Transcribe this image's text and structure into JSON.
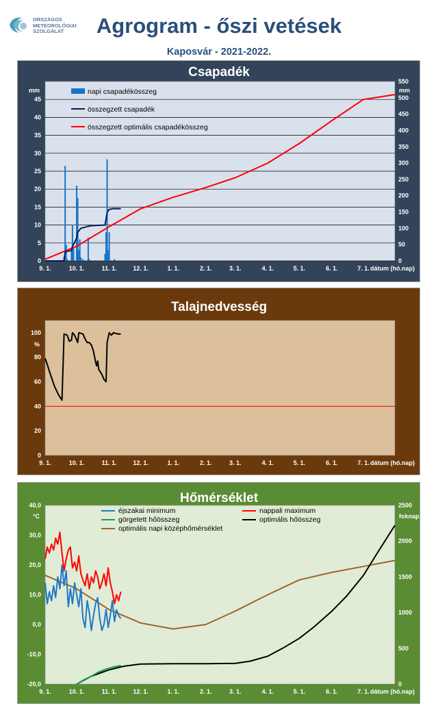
{
  "logo": {
    "line1": "ORSZÁGOS",
    "line2": "METEOROLÓGIAI",
    "line3": "SZOLGÁLAT",
    "icon": "omsz-logo"
  },
  "title": "Agrogram - őszi vetések",
  "subtitle": "Kaposvár - 2021-2022.",
  "colors": {
    "title": "#2a4f7a",
    "panel1": "#33445a",
    "panel2": "#6b3a0c",
    "panel3": "#5a8c34",
    "plot1": "#d9e1ec",
    "plot2": "#dcc09c",
    "plot3": "#e0ecd6"
  },
  "chart_data": [
    {
      "type": "bar+line",
      "title": "Csapadék",
      "x_ticks": [
        "9. 1.",
        "10. 1.",
        "11. 1.",
        "12. 1.",
        "1. 1.",
        "2. 1.",
        "3. 1.",
        "4. 1.",
        "5. 1.",
        "6. 1.",
        "7. 1."
      ],
      "x_label": "dátum (hó.nap)",
      "x_range": [
        "2021-09-01",
        "2022-07-31"
      ],
      "y_left": {
        "unit": "mm",
        "range": [
          0,
          50
        ],
        "ticks": [
          0,
          5,
          10,
          15,
          20,
          25,
          30,
          35,
          40,
          45
        ]
      },
      "y_right": {
        "unit": "mm",
        "range": [
          0,
          550
        ],
        "ticks": [
          0,
          50,
          100,
          150,
          200,
          250,
          300,
          350,
          400,
          450,
          500,
          550
        ]
      },
      "legend": [
        "napi csapadékösszeg",
        "összegzett csapadék",
        "összegzett optimális  csapadékösszeg"
      ],
      "daily_precip": {
        "name": "napi csapadékösszeg",
        "axis": "left",
        "color": "#1874c8",
        "points": [
          [
            "2021-09-19",
            1.0
          ],
          [
            "2021-09-20",
            26.5
          ],
          [
            "2021-09-21",
            4.5
          ],
          [
            "2021-09-22",
            0.5
          ],
          [
            "2021-09-26",
            3.0
          ],
          [
            "2021-09-27",
            10.0
          ],
          [
            "2021-09-28",
            3.5
          ],
          [
            "2021-10-01",
            21.0
          ],
          [
            "2021-10-02",
            17.5
          ],
          [
            "2021-10-03",
            3.0
          ],
          [
            "2021-10-04",
            6.0
          ],
          [
            "2021-10-05",
            1.0
          ],
          [
            "2021-10-07",
            0.5
          ],
          [
            "2021-10-12",
            6.5
          ],
          [
            "2021-10-13",
            0.5
          ],
          [
            "2021-10-28",
            2.0
          ],
          [
            "2021-10-29",
            8.0
          ],
          [
            "2021-10-30",
            28.3
          ],
          [
            "2021-10-31",
            3.0
          ],
          [
            "2021-11-01",
            8.0
          ],
          [
            "2021-11-06",
            0.5
          ]
        ]
      },
      "cumulative_precip": {
        "name": "összegzett csapadék",
        "axis": "right",
        "color": "#0a1a5a",
        "points": [
          [
            "2021-09-01",
            0
          ],
          [
            "2021-09-19",
            0
          ],
          [
            "2021-09-20",
            28
          ],
          [
            "2021-09-26",
            32
          ],
          [
            "2021-09-27",
            45
          ],
          [
            "2021-09-28",
            50
          ],
          [
            "2021-10-01",
            70
          ],
          [
            "2021-10-02",
            88
          ],
          [
            "2021-10-05",
            100
          ],
          [
            "2021-10-12",
            106
          ],
          [
            "2021-10-15",
            108
          ],
          [
            "2021-10-28",
            110
          ],
          [
            "2021-10-30",
            148
          ],
          [
            "2021-11-01",
            158
          ],
          [
            "2021-11-05",
            160
          ],
          [
            "2021-11-12",
            160
          ]
        ]
      },
      "optimal_cumulative": {
        "name": "összegzett optimális  csapadékösszeg",
        "axis": "right",
        "color": "#ff0000",
        "points": [
          [
            "2021-09-01",
            5
          ],
          [
            "2021-10-01",
            45
          ],
          [
            "2021-11-01",
            105
          ],
          [
            "2021-12-01",
            160
          ],
          [
            "2022-01-01",
            195
          ],
          [
            "2022-02-01",
            225
          ],
          [
            "2022-03-01",
            255
          ],
          [
            "2022-04-01",
            300
          ],
          [
            "2022-05-01",
            360
          ],
          [
            "2022-06-01",
            430
          ],
          [
            "2022-07-01",
            495
          ],
          [
            "2022-07-31",
            510
          ]
        ]
      }
    },
    {
      "type": "line",
      "title": "Talajnedvesség",
      "x_ticks": [
        "9. 1.",
        "10. 1.",
        "11. 1.",
        "12. 1.",
        "1. 1.",
        "2. 1.",
        "3. 1.",
        "4. 1.",
        "5. 1.",
        "6. 1.",
        "7. 1."
      ],
      "x_label": "dátum (hó.nap)",
      "x_range": [
        "2021-09-01",
        "2022-07-31"
      ],
      "y": {
        "unit": "%",
        "range": [
          0,
          110
        ],
        "ticks": [
          0,
          20,
          40,
          60,
          80,
          100
        ]
      },
      "threshold": {
        "value": 40,
        "color": "#ff0000"
      },
      "soil_moisture": {
        "color": "#000000",
        "points": [
          [
            "2021-09-01",
            79
          ],
          [
            "2021-09-03",
            74
          ],
          [
            "2021-09-06",
            66
          ],
          [
            "2021-09-10",
            56
          ],
          [
            "2021-09-14",
            49
          ],
          [
            "2021-09-17",
            45
          ],
          [
            "2021-09-19",
            99
          ],
          [
            "2021-09-22",
            98
          ],
          [
            "2021-09-24",
            93
          ],
          [
            "2021-09-26",
            94
          ],
          [
            "2021-09-27",
            100
          ],
          [
            "2021-09-29",
            98
          ],
          [
            "2021-10-02",
            92
          ],
          [
            "2021-10-03",
            100
          ],
          [
            "2021-10-07",
            99
          ],
          [
            "2021-10-09",
            95
          ],
          [
            "2021-10-11",
            92
          ],
          [
            "2021-10-13",
            92
          ],
          [
            "2021-10-15",
            90
          ],
          [
            "2021-10-17",
            85
          ],
          [
            "2021-10-19",
            76
          ],
          [
            "2021-10-20",
            73
          ],
          [
            "2021-10-21",
            77
          ],
          [
            "2021-10-22",
            70
          ],
          [
            "2021-10-25",
            66
          ],
          [
            "2021-10-27",
            62
          ],
          [
            "2021-10-29",
            60
          ],
          [
            "2021-10-30",
            92
          ],
          [
            "2021-11-01",
            100
          ],
          [
            "2021-11-03",
            98
          ],
          [
            "2021-11-05",
            100
          ],
          [
            "2021-11-09",
            99
          ],
          [
            "2021-11-12",
            99
          ]
        ]
      }
    },
    {
      "type": "line",
      "title": "Hőmérséklet",
      "x_ticks": [
        "9. 1.",
        "10. 1.",
        "11. 1.",
        "12. 1.",
        "1. 1.",
        "2. 1.",
        "3. 1.",
        "4. 1.",
        "5. 1.",
        "6. 1.",
        "7. 1."
      ],
      "x_label": "dátum (hó.nap)",
      "x_range": [
        "2021-09-01",
        "2022-07-31"
      ],
      "y_left": {
        "unit": "°C",
        "range": [
          -20,
          40
        ],
        "ticks": [
          "-20,0",
          "-10,0",
          "0,0",
          "10,0",
          "20,0",
          "30,0",
          "40,0"
        ]
      },
      "y_right": {
        "unit": "foknap",
        "range": [
          0,
          2500
        ],
        "ticks": [
          0,
          500,
          1000,
          1500,
          2000,
          2500
        ]
      },
      "legend": [
        "éjszakai minimum",
        "nappali maximum",
        "görgetett hőösszeg",
        "optimális hőösszeg",
        "optimális napi középhőmérséklet"
      ],
      "tmin": {
        "name": "éjszakai minimum",
        "axis": "left",
        "color": "#1e78c8",
        "points": [
          [
            "2021-09-01",
            14
          ],
          [
            "2021-09-03",
            7
          ],
          [
            "2021-09-05",
            11
          ],
          [
            "2021-09-07",
            8
          ],
          [
            "2021-09-09",
            13
          ],
          [
            "2021-09-11",
            9
          ],
          [
            "2021-09-13",
            16
          ],
          [
            "2021-09-15",
            12
          ],
          [
            "2021-09-17",
            20
          ],
          [
            "2021-09-19",
            13
          ],
          [
            "2021-09-21",
            18
          ],
          [
            "2021-09-23",
            6
          ],
          [
            "2021-09-25",
            12
          ],
          [
            "2021-09-27",
            7
          ],
          [
            "2021-09-29",
            14
          ],
          [
            "2021-10-01",
            10
          ],
          [
            "2021-10-03",
            6
          ],
          [
            "2021-10-05",
            12
          ],
          [
            "2021-10-07",
            2
          ],
          [
            "2021-10-09",
            -1
          ],
          [
            "2021-10-11",
            8
          ],
          [
            "2021-10-13",
            4
          ],
          [
            "2021-10-15",
            -2
          ],
          [
            "2021-10-17",
            3
          ],
          [
            "2021-10-19",
            7
          ],
          [
            "2021-10-21",
            9
          ],
          [
            "2021-10-23",
            2
          ],
          [
            "2021-10-25",
            -2
          ],
          [
            "2021-10-27",
            0
          ],
          [
            "2021-10-29",
            5
          ],
          [
            "2021-10-31",
            -1
          ],
          [
            "2021-11-02",
            3
          ],
          [
            "2021-11-04",
            8
          ],
          [
            "2021-11-06",
            1
          ],
          [
            "2021-11-08",
            5
          ],
          [
            "2021-11-10",
            3
          ],
          [
            "2021-11-12",
            2
          ]
        ]
      },
      "tmax": {
        "name": "nappali maximum",
        "axis": "left",
        "color": "#ff0000",
        "points": [
          [
            "2021-09-01",
            22
          ],
          [
            "2021-09-03",
            26
          ],
          [
            "2021-09-05",
            24
          ],
          [
            "2021-09-07",
            27
          ],
          [
            "2021-09-09",
            25
          ],
          [
            "2021-09-11",
            29
          ],
          [
            "2021-09-13",
            27
          ],
          [
            "2021-09-15",
            31
          ],
          [
            "2021-09-17",
            24
          ],
          [
            "2021-09-19",
            18
          ],
          [
            "2021-09-21",
            22
          ],
          [
            "2021-09-23",
            25
          ],
          [
            "2021-09-25",
            26
          ],
          [
            "2021-09-27",
            19
          ],
          [
            "2021-09-29",
            21
          ],
          [
            "2021-10-01",
            18
          ],
          [
            "2021-10-03",
            23
          ],
          [
            "2021-10-05",
            17
          ],
          [
            "2021-10-07",
            15
          ],
          [
            "2021-10-09",
            13
          ],
          [
            "2021-10-11",
            17
          ],
          [
            "2021-10-13",
            12
          ],
          [
            "2021-10-15",
            16
          ],
          [
            "2021-10-17",
            14
          ],
          [
            "2021-10-19",
            18
          ],
          [
            "2021-10-21",
            16
          ],
          [
            "2021-10-23",
            12
          ],
          [
            "2021-10-25",
            14
          ],
          [
            "2021-10-27",
            17
          ],
          [
            "2021-10-29",
            13
          ],
          [
            "2021-10-31",
            19
          ],
          [
            "2021-11-02",
            14
          ],
          [
            "2021-11-04",
            11
          ],
          [
            "2021-11-06",
            7
          ],
          [
            "2021-11-08",
            10
          ],
          [
            "2021-11-10",
            8
          ],
          [
            "2021-11-12",
            11
          ]
        ]
      },
      "rolling_heat_sum": {
        "name": "görgetett hőösszeg",
        "axis": "right",
        "color": "#1aa050",
        "points": [
          [
            "2021-10-01",
            0
          ],
          [
            "2021-10-08",
            60
          ],
          [
            "2021-10-15",
            110
          ],
          [
            "2021-10-22",
            170
          ],
          [
            "2021-10-29",
            210
          ],
          [
            "2021-11-05",
            240
          ],
          [
            "2021-11-12",
            260
          ]
        ]
      },
      "optimal_heat_sum": {
        "name": "optimális hőösszeg",
        "axis": "right",
        "color": "#000000",
        "points": [
          [
            "2021-10-01",
            0
          ],
          [
            "2021-10-15",
            110
          ],
          [
            "2021-11-01",
            200
          ],
          [
            "2021-11-15",
            250
          ],
          [
            "2021-12-01",
            280
          ],
          [
            "2022-01-01",
            285
          ],
          [
            "2022-02-01",
            285
          ],
          [
            "2022-03-01",
            290
          ],
          [
            "2022-03-15",
            320
          ],
          [
            "2022-04-01",
            390
          ],
          [
            "2022-04-15",
            500
          ],
          [
            "2022-05-01",
            640
          ],
          [
            "2022-05-15",
            800
          ],
          [
            "2022-06-01",
            1020
          ],
          [
            "2022-06-15",
            1230
          ],
          [
            "2022-07-01",
            1520
          ],
          [
            "2022-07-15",
            1850
          ],
          [
            "2022-07-31",
            2220
          ]
        ]
      },
      "optimal_daily_mean": {
        "name": "optimális napi középhőmérséklet",
        "axis": "left",
        "color": "#a0622a",
        "points": [
          [
            "2021-09-01",
            16.5
          ],
          [
            "2021-10-01",
            12
          ],
          [
            "2021-11-01",
            5
          ],
          [
            "2021-12-01",
            0.5
          ],
          [
            "2022-01-01",
            -1.5
          ],
          [
            "2022-02-01",
            0
          ],
          [
            "2022-03-01",
            4.5
          ],
          [
            "2022-04-01",
            10
          ],
          [
            "2022-05-01",
            15
          ],
          [
            "2022-06-01",
            17.5
          ],
          [
            "2022-07-01",
            19.5
          ],
          [
            "2022-07-31",
            21.5
          ]
        ]
      }
    }
  ]
}
